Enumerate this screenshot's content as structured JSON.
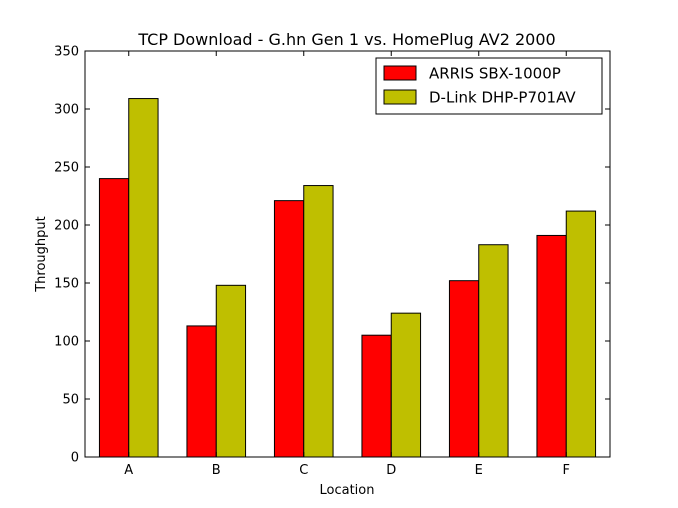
{
  "chart_data": {
    "type": "bar",
    "title": "TCP Download - G.hn Gen 1 vs. HomePlug AV2 2000",
    "xlabel": "Location",
    "ylabel": "Throughput",
    "categories": [
      "A",
      "B",
      "C",
      "D",
      "E",
      "F"
    ],
    "ylim": [
      0,
      350
    ],
    "yticks": [
      0,
      50,
      100,
      150,
      200,
      250,
      300,
      350
    ],
    "grid": false,
    "legend_position": "top-right",
    "series": [
      {
        "name": "ARRIS SBX-1000P",
        "color": "#ff0000",
        "values": [
          240,
          113,
          221,
          105,
          152,
          191
        ]
      },
      {
        "name": "D-Link DHP-P701AV",
        "color": "#bfbf00",
        "values": [
          309,
          148,
          234,
          124,
          183,
          212
        ]
      }
    ]
  }
}
